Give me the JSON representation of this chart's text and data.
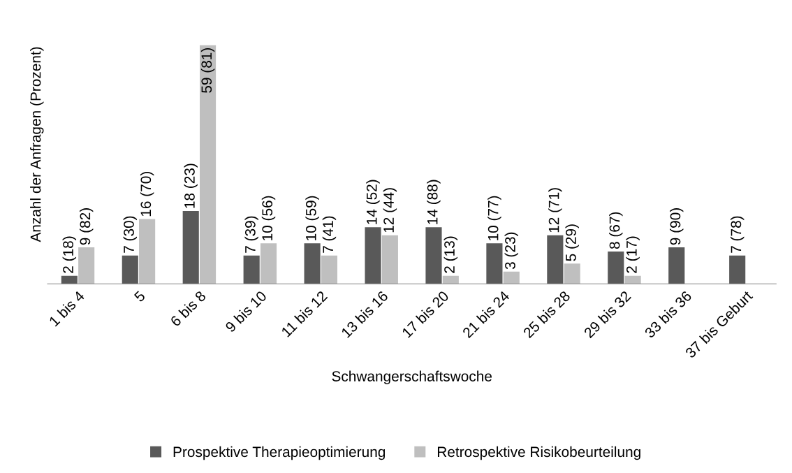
{
  "chart_data": {
    "type": "bar",
    "xlabel": "Schwangerschaftswoche",
    "ylabel": "Anzahl der Anfragen (Prozent)",
    "categories": [
      "1 bis 4",
      "5",
      "6 bis 8",
      "9 bis 10",
      "11 bis 12",
      "13 bis 16",
      "17 bis 20",
      "21 bis 24",
      "25 bis 28",
      "29 bis 32",
      "33 bis 36",
      "37 bis Geburt"
    ],
    "series": [
      {
        "name": "Prospektive Therapieoptimierung",
        "color": "#595959",
        "values": [
          2,
          7,
          18,
          7,
          10,
          14,
          14,
          10,
          12,
          8,
          9,
          7
        ],
        "value_labels": [
          "2 (18)",
          "7 (30)",
          "18 (23)",
          "7 (39)",
          "10 (59)",
          "14 (52)",
          "14 (88)",
          "10 (77)",
          "12 (71)",
          "8 (67)",
          "9 (90)",
          "7 (78)"
        ]
      },
      {
        "name": "Retrospektive Risikobeurteilung",
        "color": "#bfbfbf",
        "values": [
          9,
          16,
          59,
          10,
          7,
          12,
          2,
          3,
          5,
          2,
          null,
          null
        ],
        "value_labels": [
          "9 (82)",
          "16 (70)",
          "59 (81)",
          "10 (56)",
          "7 (41)",
          "12 (44)",
          "2 (13)",
          "3 (23)",
          "5 (29)",
          "2 (17)",
          null,
          null
        ]
      }
    ],
    "tick_labels": "x",
    "grid": false,
    "legend": "bottom"
  }
}
